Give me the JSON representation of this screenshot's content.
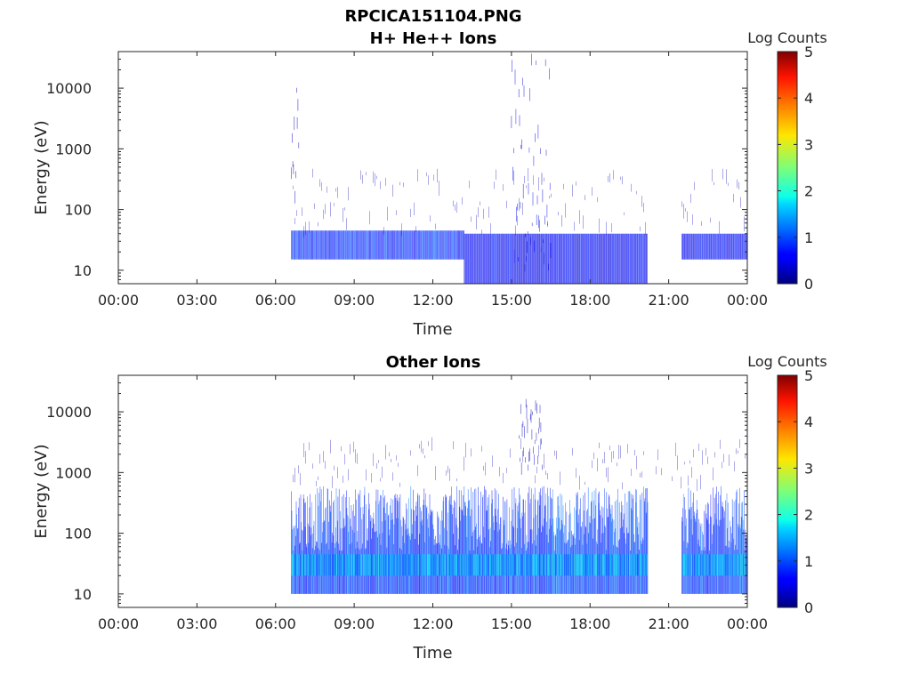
{
  "figure": {
    "title_line1": "RPCICA151104.PNG"
  },
  "colors": {
    "axis": "#262626",
    "sparse_blue": "#3f48c8",
    "dense_blue": "#1a2fd6",
    "dark_blue": "#0a1a8f",
    "cyan_band": "#35c4f0"
  },
  "chart_data": [
    {
      "type": "heatmap",
      "title": "H+ He++ Ions",
      "xlabel": "Time",
      "ylabel": "Energy (eV)",
      "x_tick_labels": [
        "00:00",
        "03:00",
        "06:00",
        "09:00",
        "12:00",
        "15:00",
        "18:00",
        "21:00",
        "00:00"
      ],
      "x_ticks_hours": [
        0,
        3,
        6,
        9,
        12,
        15,
        18,
        21,
        24
      ],
      "xlim_hours": [
        0,
        24
      ],
      "y_scale": "log",
      "ylim": [
        6,
        40000
      ],
      "y_ticks": [
        10,
        100,
        1000,
        10000
      ],
      "y_tick_labels": [
        "10",
        "100",
        "1000",
        "10000"
      ],
      "colorbar": {
        "label": "Log Counts",
        "ticks": [
          0,
          1,
          2,
          3,
          4,
          5
        ],
        "tick_labels": [
          "0",
          "1",
          "2",
          "3",
          "4",
          "5"
        ],
        "range": [
          0,
          5
        ],
        "colormap": "jet"
      },
      "data_segments_hours": [
        [
          6.6,
          20.2
        ],
        [
          21.5,
          24.0
        ]
      ],
      "features": [
        {
          "kind": "band",
          "start": 6.6,
          "end": 13.2,
          "e_low": 15,
          "e_high": 45,
          "level": 0.8
        },
        {
          "kind": "band",
          "start": 13.2,
          "end": 20.2,
          "e_low": 6,
          "e_high": 40,
          "level": 0.6
        },
        {
          "kind": "band",
          "start": 21.5,
          "end": 24.0,
          "e_low": 15,
          "e_high": 40,
          "level": 0.6
        },
        {
          "kind": "sparse",
          "start": 6.6,
          "end": 20.2,
          "e_low": 40,
          "e_high": 400,
          "level": 0.3
        },
        {
          "kind": "sparse",
          "start": 21.5,
          "end": 24.0,
          "e_low": 40,
          "e_high": 400,
          "level": 0.3
        },
        {
          "kind": "burst",
          "start": 15.0,
          "end": 16.5,
          "e_low": 10,
          "e_high": 30000,
          "level": 0.5
        },
        {
          "kind": "burst",
          "start": 6.6,
          "end": 6.9,
          "e_low": 100,
          "e_high": 10000,
          "level": 0.3
        }
      ]
    },
    {
      "type": "heatmap",
      "title": "Other Ions",
      "xlabel": "Time",
      "ylabel": "Energy (eV)",
      "x_tick_labels": [
        "00:00",
        "03:00",
        "06:00",
        "09:00",
        "12:00",
        "15:00",
        "18:00",
        "21:00",
        "00:00"
      ],
      "x_ticks_hours": [
        0,
        3,
        6,
        9,
        12,
        15,
        18,
        21,
        24
      ],
      "xlim_hours": [
        0,
        24
      ],
      "y_scale": "log",
      "ylim": [
        6,
        40000
      ],
      "y_ticks": [
        10,
        100,
        1000,
        10000
      ],
      "y_tick_labels": [
        "10",
        "100",
        "1000",
        "10000"
      ],
      "colorbar": {
        "label": "Log Counts",
        "ticks": [
          0,
          1,
          2,
          3,
          4,
          5
        ],
        "tick_labels": [
          "0",
          "1",
          "2",
          "3",
          "4",
          "5"
        ],
        "range": [
          0,
          5
        ],
        "colormap": "jet"
      },
      "data_segments_hours": [
        [
          6.6,
          20.2
        ],
        [
          21.5,
          24.0
        ]
      ],
      "features": [
        {
          "kind": "dense",
          "start": 6.6,
          "end": 20.2,
          "e_low": 10,
          "e_high": 600,
          "level": 0.9
        },
        {
          "kind": "dense",
          "start": 21.5,
          "end": 24.0,
          "e_low": 10,
          "e_high": 600,
          "level": 0.9
        },
        {
          "kind": "band",
          "start": 6.6,
          "end": 20.2,
          "e_low": 20,
          "e_high": 45,
          "level": 1.5
        },
        {
          "kind": "band",
          "start": 21.5,
          "end": 24.0,
          "e_low": 20,
          "e_high": 45,
          "level": 1.5
        },
        {
          "kind": "sparse",
          "start": 6.6,
          "end": 24.0,
          "e_low": 600,
          "e_high": 3000,
          "level": 0.3
        },
        {
          "kind": "burst",
          "start": 15.3,
          "end": 16.2,
          "e_low": 1000,
          "e_high": 14000,
          "level": 0.3
        }
      ]
    }
  ]
}
